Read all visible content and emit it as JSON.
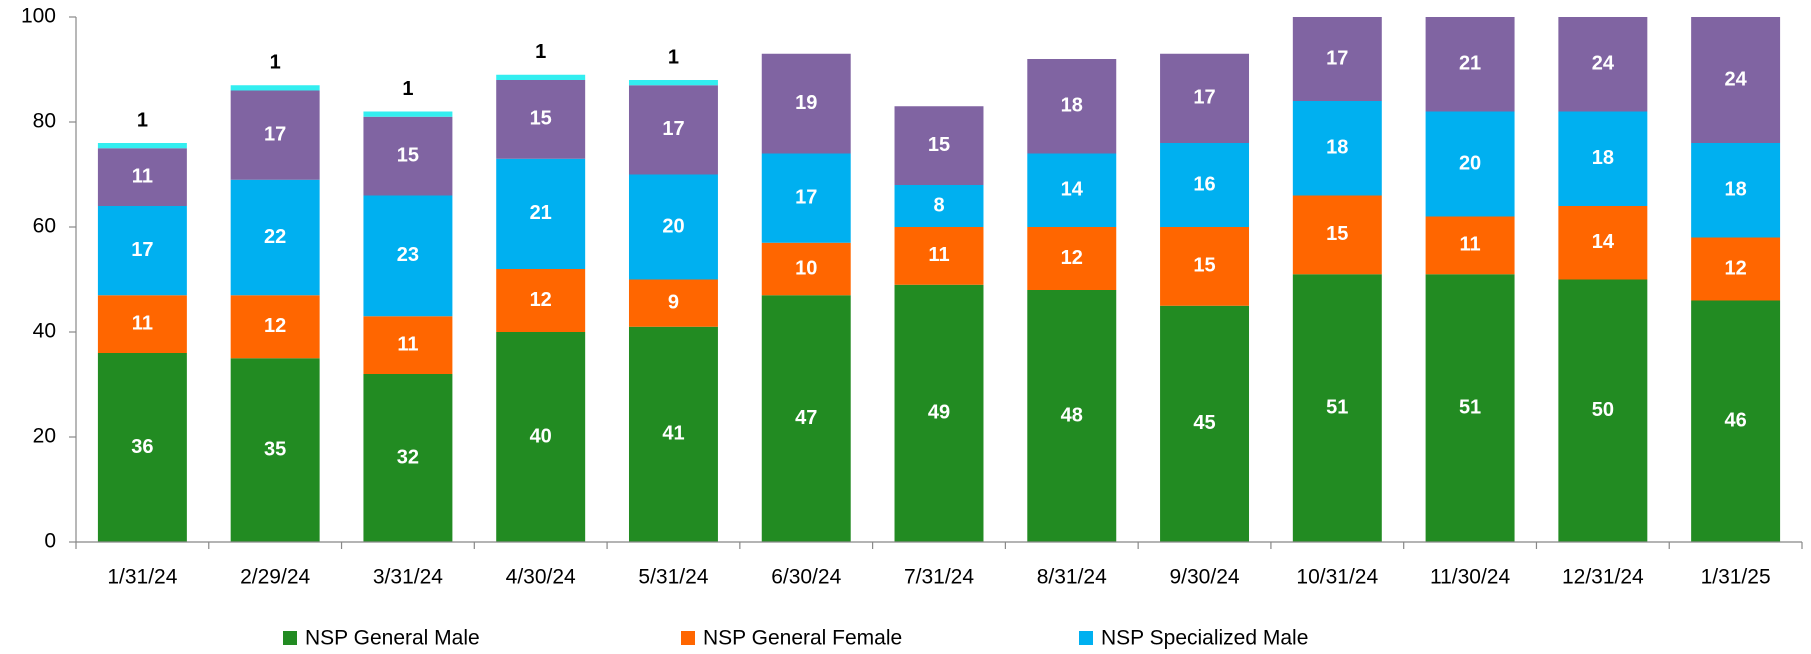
{
  "chart_data": {
    "type": "stacked_bar",
    "categories": [
      "1/31/24",
      "2/29/24",
      "3/31/24",
      "4/30/24",
      "5/31/24",
      "6/30/24",
      "7/31/24",
      "8/31/24",
      "9/30/24",
      "10/31/24",
      "11/30/24",
      "12/31/24",
      "1/31/25"
    ],
    "series": [
      {
        "name": "NSP General Male",
        "color": "#228B22",
        "values": [
          36,
          35,
          32,
          40,
          41,
          47,
          49,
          48,
          45,
          51,
          51,
          50,
          46
        ]
      },
      {
        "name": "NSP General Female",
        "color": "#FF6600",
        "values": [
          11,
          12,
          11,
          12,
          9,
          10,
          11,
          12,
          15,
          15,
          11,
          14,
          12
        ]
      },
      {
        "name": "NSP Specialized Male",
        "color": "#00B0F0",
        "values": [
          17,
          22,
          23,
          21,
          20,
          17,
          8,
          14,
          16,
          18,
          20,
          18,
          18
        ]
      },
      {
        "color": "#8064A2",
        "values": [
          11,
          17,
          15,
          15,
          17,
          19,
          15,
          18,
          17,
          17,
          21,
          24,
          24
        ]
      },
      {
        "color": "#33EEF0",
        "values": [
          1,
          1,
          1,
          1,
          1,
          null,
          null,
          null,
          null,
          null,
          null,
          null,
          null
        ]
      }
    ],
    "ylim": [
      0,
      100
    ],
    "yticks": [
      0,
      20,
      40,
      60,
      80,
      100
    ],
    "grid": false,
    "legend": "bottom"
  }
}
